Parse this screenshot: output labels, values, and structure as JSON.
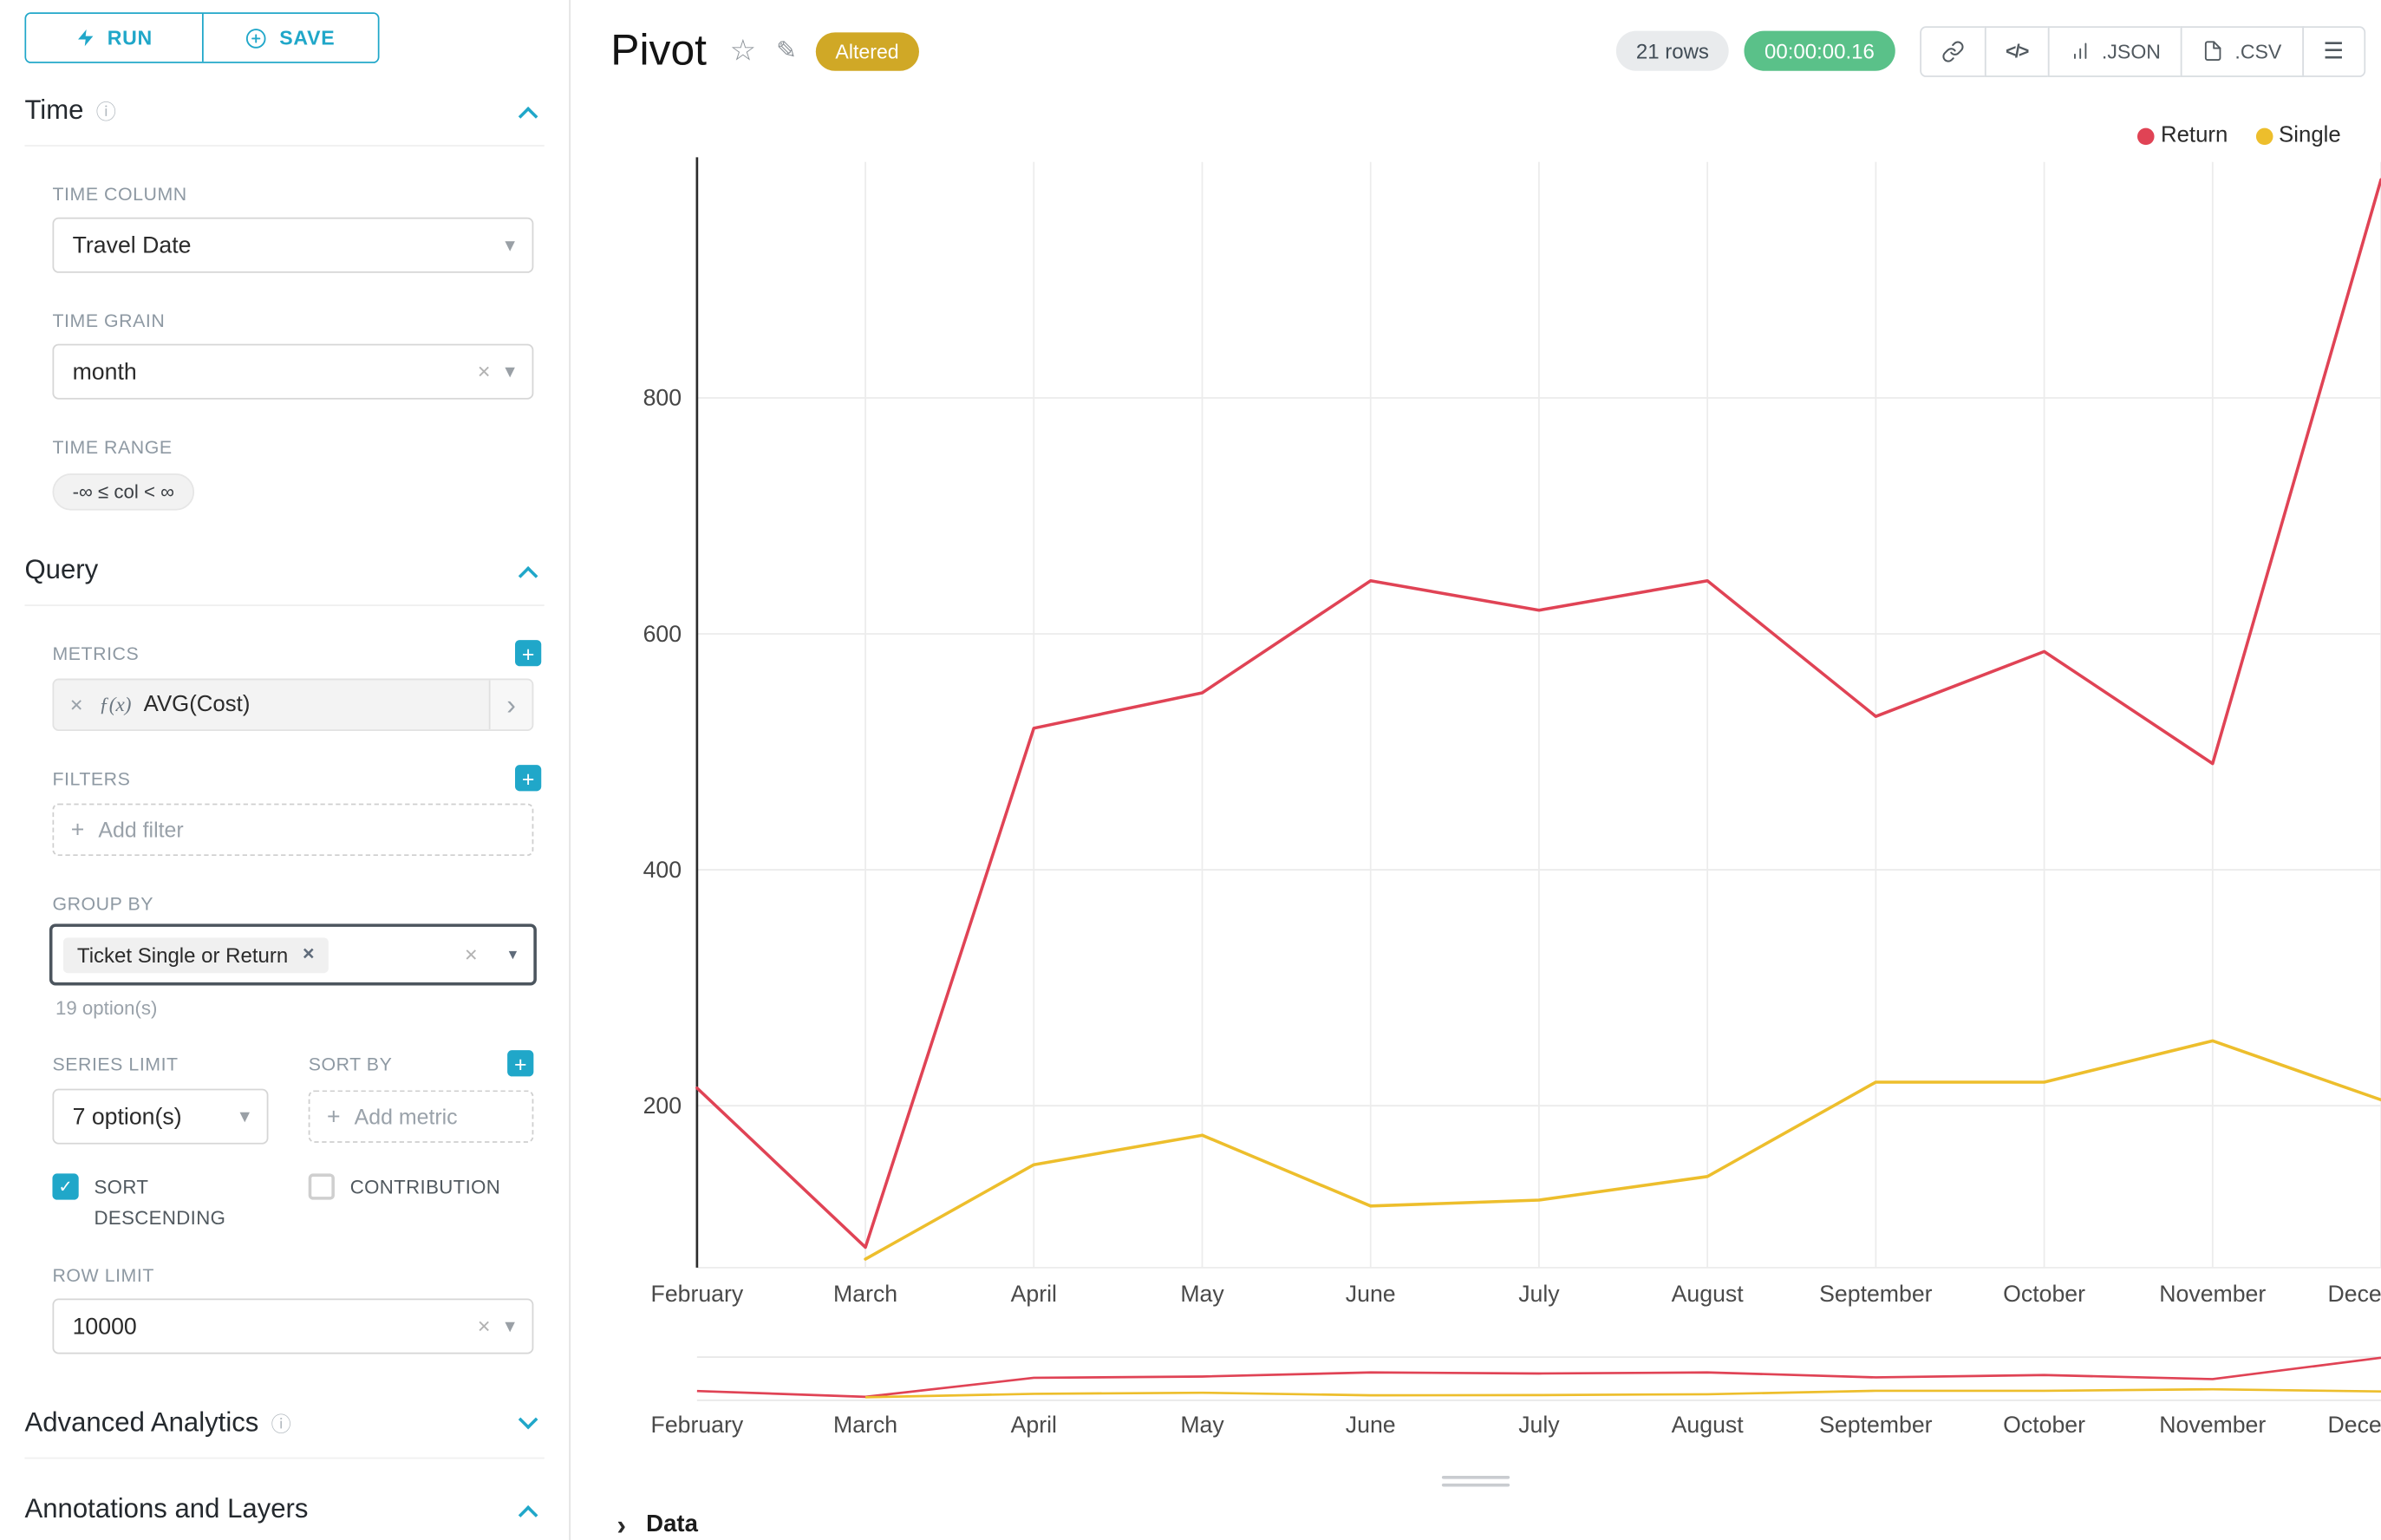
{
  "toolbar": {
    "run_label": "RUN",
    "save_label": "SAVE"
  },
  "icons": {
    "info": "ⓘ",
    "star": "☆",
    "edit": "✎",
    "menu": "☰",
    "close": "✕",
    "caret": "▾",
    "caret_filled": "▼",
    "chevron_right": "›",
    "plus": "+",
    "check": "✓",
    "fx": "ƒ(x)",
    "code": "</>"
  },
  "panel": {
    "time": {
      "title": "Time",
      "time_column_label": "TIME COLUMN",
      "time_column_value": "Travel Date",
      "time_grain_label": "TIME GRAIN",
      "time_grain_value": "month",
      "time_range_label": "TIME RANGE",
      "time_range_value": "-∞ ≤ col < ∞"
    },
    "query": {
      "title": "Query",
      "metrics_label": "METRICS",
      "metric_value": "AVG(Cost)",
      "filters_label": "FILTERS",
      "add_filter_label": "Add filter",
      "group_by_label": "GROUP BY",
      "group_by_tag": "Ticket Single or Return",
      "options_hint": "19 option(s)",
      "series_limit_label": "SERIES LIMIT",
      "series_limit_value": "7 option(s)",
      "sort_by_label": "SORT BY",
      "add_metric_label": "Add metric",
      "sort_descending_label": "SORT DESCENDING",
      "contribution_label": "CONTRIBUTION",
      "row_limit_label": "ROW LIMIT",
      "row_limit_value": "10000"
    },
    "advanced_analytics_title": "Advanced Analytics",
    "annotations_title": "Annotations and Layers"
  },
  "header": {
    "title": "Pivot",
    "altered_badge": "Altered",
    "rows_badge": "21 rows",
    "timer_badge": "00:00:00.16",
    "json_label": ".JSON",
    "csv_label": ".CSV"
  },
  "chart_data": {
    "type": "line",
    "title": "Pivot",
    "categories": [
      "February",
      "March",
      "April",
      "May",
      "June",
      "July",
      "August",
      "September",
      "October",
      "November",
      "December"
    ],
    "series": [
      {
        "name": "Return",
        "color": "#e04355",
        "values": [
          215,
          80,
          520,
          550,
          645,
          620,
          645,
          530,
          585,
          490,
          985
        ]
      },
      {
        "name": "Single",
        "color": "#edbe2c",
        "values": [
          null,
          70,
          150,
          175,
          115,
          120,
          140,
          220,
          220,
          255,
          205
        ]
      }
    ],
    "xlabel": "",
    "ylabel": "",
    "ylim": [
      0,
      1000
    ],
    "yticks": [
      200,
      400,
      600,
      800
    ],
    "grid": true,
    "legend_position": "top-right",
    "has_mini_preview": true
  },
  "data_panel": {
    "title": "Data"
  }
}
